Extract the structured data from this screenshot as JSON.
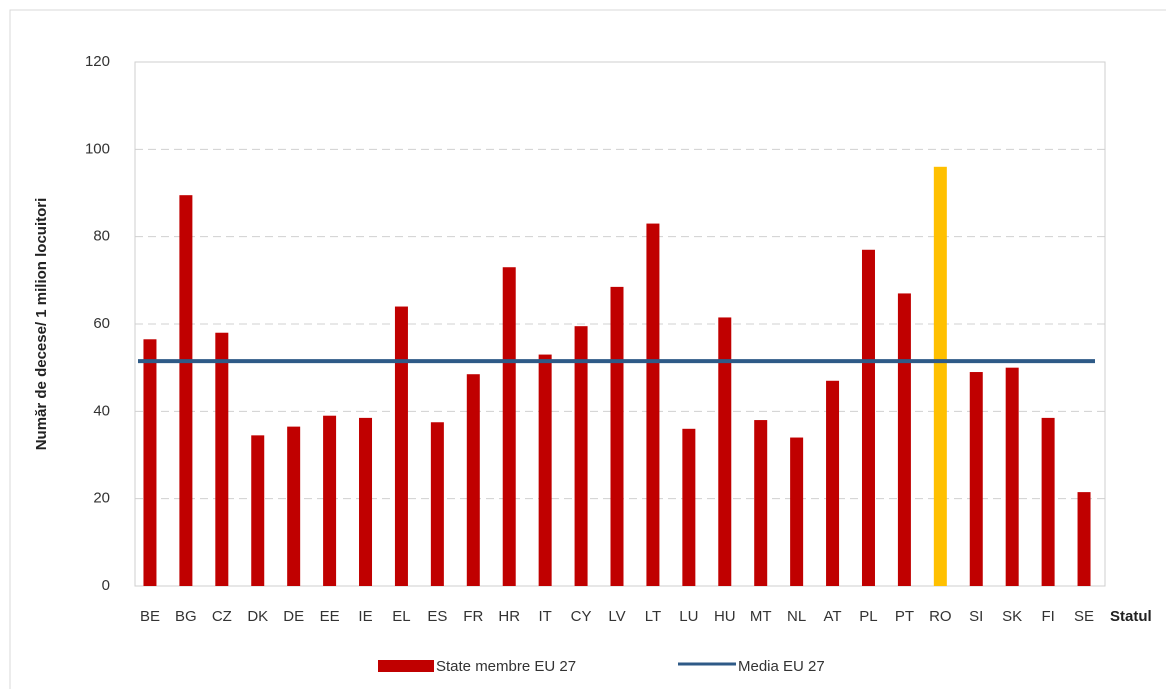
{
  "chart_data": {
    "type": "bar",
    "y_axis_label": "Număr de decese/ 1 milion locuitori",
    "x_axis_label": "Statul",
    "categories": [
      "BE",
      "BG",
      "CZ",
      "DK",
      "DE",
      "EE",
      "IE",
      "EL",
      "ES",
      "FR",
      "HR",
      "IT",
      "CY",
      "LV",
      "LT",
      "LU",
      "HU",
      "MT",
      "NL",
      "AT",
      "PL",
      "PT",
      "RO",
      "SI",
      "SK",
      "FI",
      "SE"
    ],
    "series": [
      {
        "name": "State membre EU 27",
        "color": "#c00000",
        "values": [
          56.5,
          89.5,
          58,
          34.5,
          36.5,
          39,
          38.5,
          64,
          37.5,
          48.5,
          73,
          53,
          59.5,
          68.5,
          83,
          36,
          61.5,
          38,
          34,
          47,
          77,
          67,
          96,
          49,
          50,
          38.5,
          21.5
        ],
        "colors": [
          "#c00000",
          "#c00000",
          "#c00000",
          "#c00000",
          "#c00000",
          "#c00000",
          "#c00000",
          "#c00000",
          "#c00000",
          "#c00000",
          "#c00000",
          "#c00000",
          "#c00000",
          "#c00000",
          "#c00000",
          "#c00000",
          "#c00000",
          "#c00000",
          "#c00000",
          "#c00000",
          "#c00000",
          "#c00000",
          "#ffc000",
          "#c00000",
          "#c00000",
          "#c00000",
          "#c00000"
        ]
      },
      {
        "name": "Media EU 27",
        "type": "line",
        "color": "#2e5a87",
        "value": 51.5
      }
    ],
    "ylim": [
      0,
      120
    ],
    "yticks": [
      0,
      20,
      40,
      60,
      80,
      100,
      120
    ],
    "grid": true
  }
}
